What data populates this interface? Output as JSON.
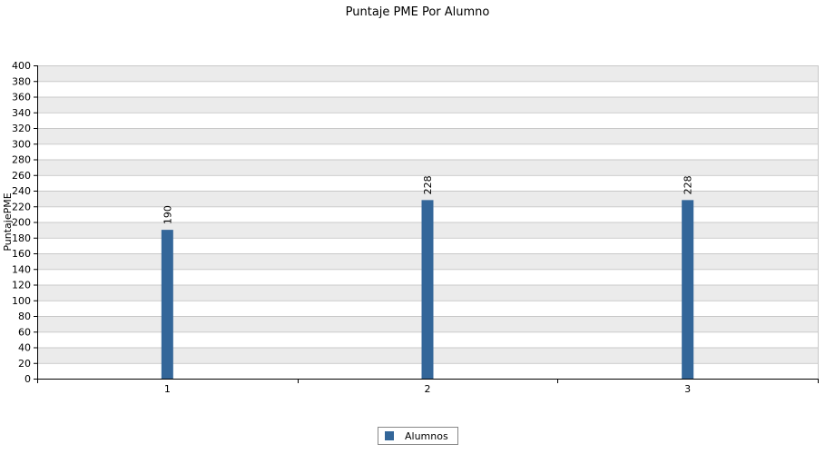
{
  "chart_data": {
    "type": "bar",
    "title": "Puntaje PME Por Alumno",
    "xlabel": "",
    "ylabel": "PuntajePME",
    "categories": [
      "1",
      "2",
      "3"
    ],
    "series": [
      {
        "name": "Alumnos",
        "values": [
          190,
          228,
          228
        ],
        "color": "#336699"
      }
    ],
    "ylim": [
      0,
      400
    ],
    "ytick_step": 20,
    "grid": true,
    "band_colors": [
      "#ebebeb",
      "#ffffff"
    ],
    "grid_color": "#c8c8c8",
    "legend_position": "bottom-center"
  }
}
